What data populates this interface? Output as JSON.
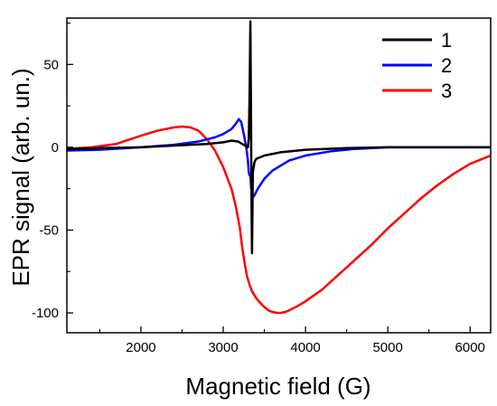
{
  "chart_data": {
    "type": "line",
    "xlabel": "Magnetic field (G)",
    "ylabel": "EPR signal (arb. un.)",
    "xlim": [
      1100,
      6250
    ],
    "ylim": [
      -112,
      78
    ],
    "xticks": [
      2000,
      3000,
      4000,
      5000,
      6000
    ],
    "yticks": [
      -100,
      -50,
      0,
      50
    ],
    "x_minor_step": 500,
    "y_minor_step": 25,
    "legend_position": "top-right",
    "series": [
      {
        "name": "1",
        "color": "#000000",
        "x": [
          1100,
          1500,
          2000,
          2400,
          2800,
          3000,
          3100,
          3180,
          3230,
          3270,
          3300,
          3310,
          3320,
          3330,
          3335,
          3340,
          3345,
          3350,
          3360,
          3380,
          3400,
          3500,
          3700,
          4000,
          4500,
          5000,
          5500,
          6000,
          6250
        ],
        "y": [
          -1,
          -0.5,
          0,
          1,
          2,
          3,
          4,
          3.5,
          2,
          1,
          0,
          5,
          30,
          76,
          40,
          0,
          -40,
          -64,
          -15,
          -9,
          -7,
          -5,
          -3,
          -1.5,
          -0.5,
          0,
          0,
          0,
          0
        ]
      },
      {
        "name": "2",
        "color": "#0000ff",
        "x": [
          1100,
          1500,
          2000,
          2400,
          2700,
          2900,
          3000,
          3100,
          3150,
          3190,
          3220,
          3250,
          3280,
          3300,
          3310,
          3320,
          3330,
          3340,
          3360,
          3380,
          3420,
          3500,
          3600,
          3800,
          4000,
          4300,
          4600,
          5000,
          5500,
          6000,
          6250
        ],
        "y": [
          -2,
          -1.5,
          0,
          1.5,
          3.5,
          6,
          8,
          11,
          14,
          17,
          15,
          8,
          0,
          -8,
          -15,
          -17,
          -17,
          -25,
          -30,
          -29,
          -25,
          -19,
          -14,
          -8,
          -5,
          -2.5,
          -1,
          0,
          0,
          0,
          0
        ]
      },
      {
        "name": "3",
        "color": "#ff0000",
        "x": [
          1100,
          1400,
          1700,
          2000,
          2200,
          2400,
          2500,
          2600,
          2700,
          2800,
          2900,
          3000,
          3100,
          3150,
          3200,
          3230,
          3260,
          3290,
          3320,
          3350,
          3400,
          3450,
          3500,
          3550,
          3600,
          3650,
          3700,
          3750,
          3800,
          3900,
          4000,
          4200,
          4400,
          4600,
          4800,
          5000,
          5200,
          5400,
          5600,
          5800,
          6000,
          6250
        ],
        "y": [
          -1,
          0,
          2,
          7,
          10,
          12,
          12.5,
          12,
          10,
          5,
          -2,
          -12,
          -25,
          -35,
          -48,
          -60,
          -70,
          -78,
          -83,
          -87,
          -91,
          -94,
          -96.5,
          -98.5,
          -99.5,
          -100,
          -100,
          -99.5,
          -98.5,
          -96,
          -93,
          -86,
          -77,
          -68,
          -59,
          -49,
          -40,
          -31,
          -23,
          -16,
          -10,
          -5
        ]
      }
    ]
  }
}
